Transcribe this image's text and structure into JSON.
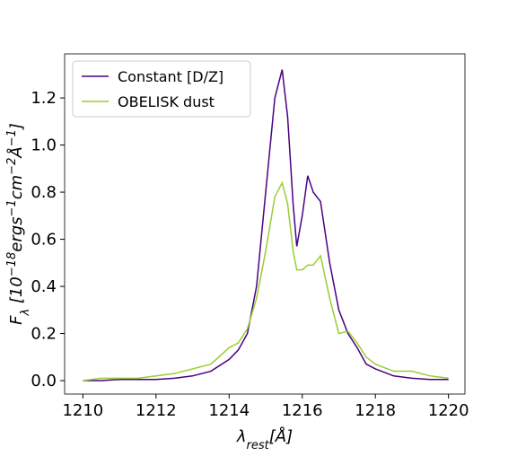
{
  "chart_data": {
    "type": "line",
    "xlabel_parts": [
      {
        "text": "λ"
      },
      {
        "text": "rest",
        "sub": true
      },
      {
        "text": "[Å]"
      }
    ],
    "ylabel_parts": [
      {
        "text": "F"
      },
      {
        "text": "λ",
        "sub": true
      },
      {
        "text": " [10"
      },
      {
        "text": "−18",
        "sup": true
      },
      {
        "text": "ergs"
      },
      {
        "text": "−1",
        "sup": true
      },
      {
        "text": "cm"
      },
      {
        "text": "−2",
        "sup": true
      },
      {
        "text": "Å"
      },
      {
        "text": "−1",
        "sup": true
      },
      {
        "text": "]"
      }
    ],
    "x": [
      1210,
      1210.5,
      1211,
      1211.5,
      1212,
      1212.5,
      1213,
      1213.5,
      1214,
      1214.25,
      1214.5,
      1214.75,
      1215,
      1215.25,
      1215.45,
      1215.6,
      1215.75,
      1215.85,
      1216,
      1216.15,
      1216.3,
      1216.5,
      1216.75,
      1217,
      1217.25,
      1217.5,
      1217.75,
      1218,
      1218.5,
      1219,
      1219.5,
      1220
    ],
    "series": [
      {
        "name": "Constant [D/Z]",
        "color": "#4b0082",
        "values": [
          0,
          0,
          0.005,
          0.005,
          0.005,
          0.01,
          0.02,
          0.04,
          0.09,
          0.13,
          0.2,
          0.4,
          0.8,
          1.2,
          1.32,
          1.12,
          0.75,
          0.57,
          0.7,
          0.87,
          0.8,
          0.76,
          0.5,
          0.3,
          0.2,
          0.14,
          0.07,
          0.05,
          0.02,
          0.01,
          0.005,
          0.005
        ]
      },
      {
        "name": "OBELISK dust",
        "color": "#9acd32",
        "values": [
          0,
          0.01,
          0.01,
          0.01,
          0.02,
          0.03,
          0.05,
          0.07,
          0.14,
          0.16,
          0.22,
          0.35,
          0.55,
          0.78,
          0.84,
          0.75,
          0.55,
          0.47,
          0.47,
          0.49,
          0.49,
          0.53,
          0.35,
          0.2,
          0.21,
          0.16,
          0.1,
          0.07,
          0.04,
          0.04,
          0.02,
          0.01
        ]
      }
    ],
    "xlim": [
      1209.5,
      1220.45
    ],
    "ylim": [
      -0.057,
      1.387
    ],
    "xticks": [
      1210,
      1212,
      1214,
      1216,
      1218,
      1220
    ],
    "yticks": [
      {
        "value": 0,
        "label": "0.0"
      },
      0.2,
      0.4,
      0.6,
      0.8,
      {
        "value": 1,
        "label": "1.0"
      },
      1.2
    ],
    "legend": "upper left"
  }
}
